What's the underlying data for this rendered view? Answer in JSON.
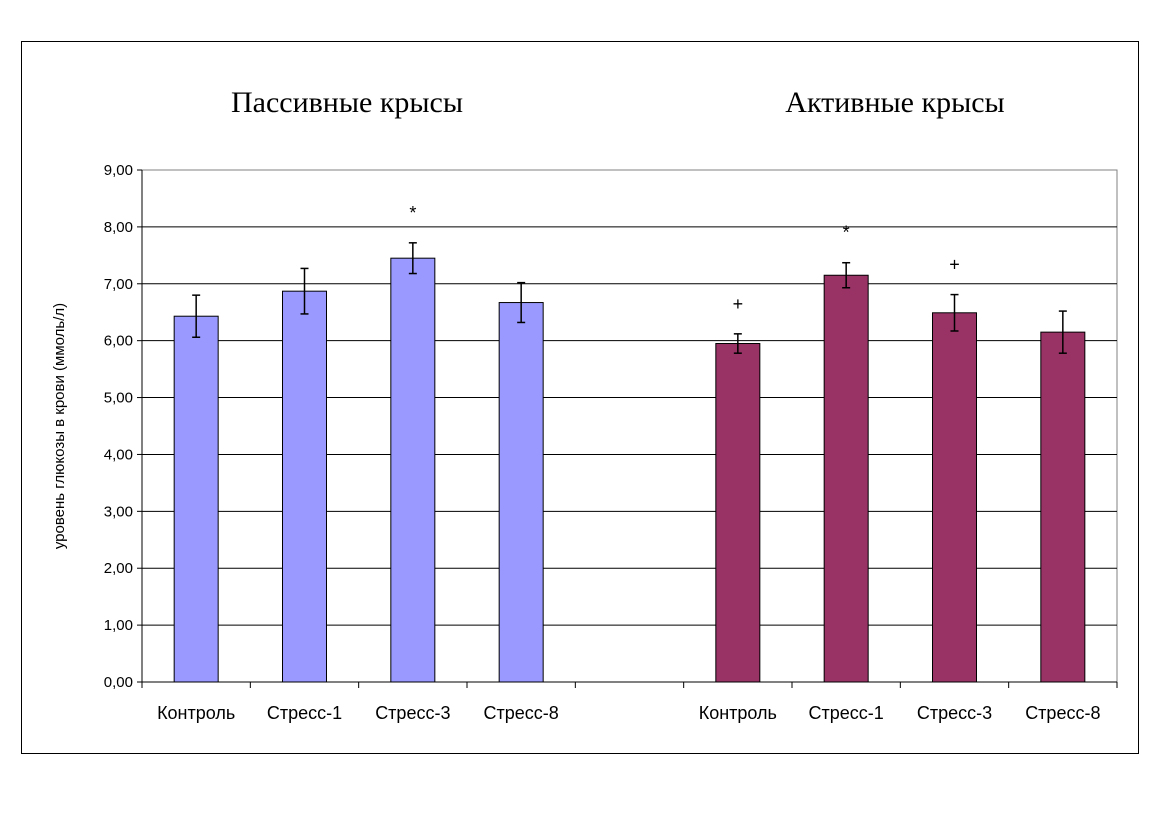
{
  "chart_data": {
    "type": "bar",
    "ylabel": "уровень глюкозы в крови (ммоль/л)",
    "ylim": [
      0,
      9
    ],
    "yticks": [
      "0,00",
      "1,00",
      "2,00",
      "3,00",
      "4,00",
      "5,00",
      "6,00",
      "7,00",
      "8,00",
      "9,00"
    ],
    "grid": true,
    "legend": "none",
    "groups": [
      {
        "title": "Пассивные крысы",
        "color": "#9999ff",
        "categories": [
          "Контроль",
          "Стресс-1",
          "Стресс-3",
          "Стресс-8"
        ],
        "values": [
          6.43,
          6.87,
          7.45,
          6.67
        ],
        "errors": [
          0.37,
          0.4,
          0.27,
          0.35
        ],
        "marks": [
          "",
          "",
          "*",
          ""
        ]
      },
      {
        "title": "Активные крысы",
        "color": "#993366",
        "categories": [
          "Контроль",
          "Стресс-1",
          "Стресс-3",
          "Стресс-8"
        ],
        "values": [
          5.95,
          7.15,
          6.49,
          6.15
        ],
        "errors": [
          0.17,
          0.22,
          0.32,
          0.37
        ],
        "marks": [
          "+",
          "*",
          "+",
          ""
        ]
      }
    ]
  }
}
